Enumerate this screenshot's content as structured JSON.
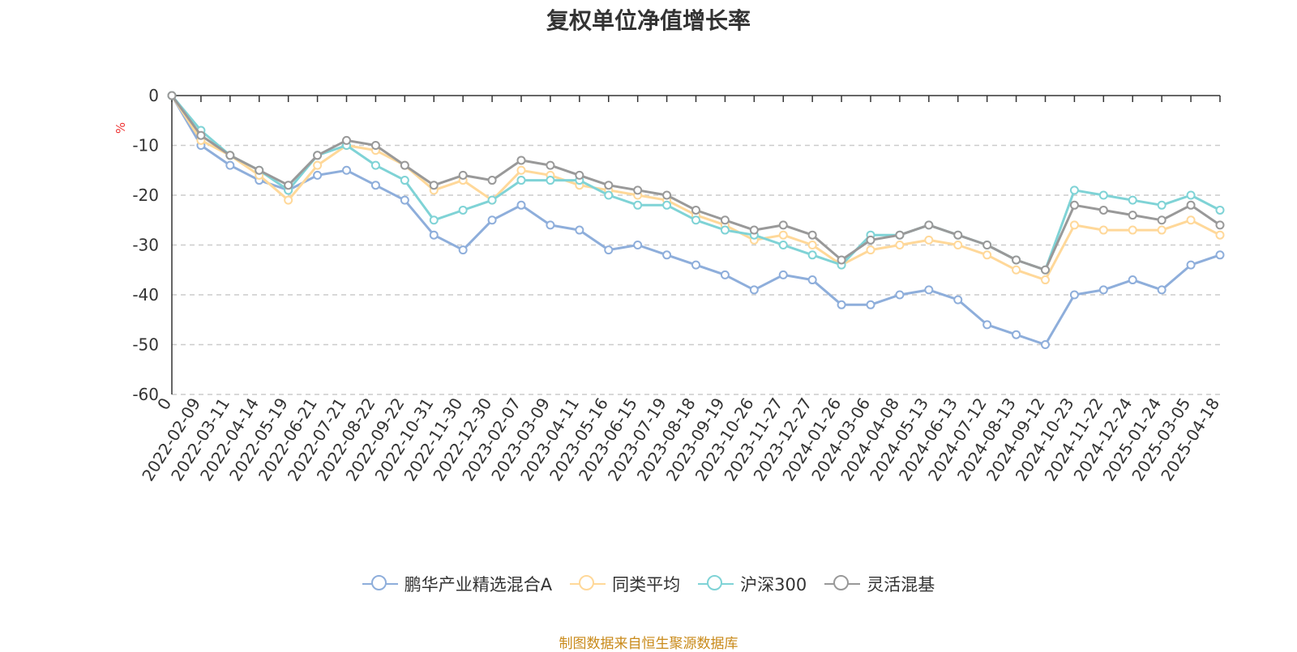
{
  "chart_data": {
    "type": "line",
    "title": "复权单位净值增长率",
    "ylabel": "%",
    "ylim": [
      -60,
      0
    ],
    "yticks": [
      "0",
      "-10",
      "-20",
      "-30",
      "-40",
      "-50",
      "-60"
    ],
    "ytick_values": [
      0,
      -10,
      -20,
      -30,
      -40,
      -50,
      -60
    ],
    "grid": true,
    "legend_position": "bottom",
    "x_tick_labels": [
      "0",
      "2022-02-09",
      "2022-03-11",
      "2022-04-14",
      "2022-05-19",
      "2022-06-21",
      "2022-07-21",
      "2022-08-22",
      "2022-09-22",
      "2022-10-31",
      "2022-11-30",
      "2022-12-30",
      "2023-02-07",
      "2023-03-09",
      "2023-04-11",
      "2023-05-16",
      "2023-06-15",
      "2023-07-19",
      "2023-08-18",
      "2023-09-19",
      "2023-10-26",
      "2023-11-27",
      "2023-12-27",
      "2024-01-26",
      "2024-03-06",
      "2024-04-08",
      "2024-05-13",
      "2024-06-13",
      "2024-07-12",
      "2024-08-13",
      "2024-09-12",
      "2024-10-23",
      "2024-11-22",
      "2024-12-24",
      "2025-01-24",
      "2025-03-05",
      "2025-04-18"
    ],
    "x_index": [
      0,
      1,
      2,
      3,
      4,
      5,
      6,
      7,
      8,
      9,
      10,
      11,
      12,
      13,
      14,
      15,
      16,
      17,
      18,
      19,
      20,
      21,
      22,
      23,
      24,
      25,
      26,
      27,
      28,
      29,
      30,
      31,
      32,
      33,
      34,
      35,
      36
    ],
    "series": [
      {
        "name": "鹏华产业精选混合A",
        "color": "#8eaedb",
        "values": [
          0,
          -10,
          -14,
          -17,
          -19,
          -16,
          -15,
          -18,
          -21,
          -28,
          -31,
          -25,
          -22,
          -26,
          -27,
          -31,
          -30,
          -32,
          -34,
          -36,
          -39,
          -36,
          -37,
          -42,
          -42,
          -40,
          -39,
          -41,
          -46,
          -48,
          -50,
          -40,
          -39,
          -37,
          -39,
          -34,
          -32
        ]
      },
      {
        "name": "同类平均",
        "color": "#ffd899",
        "values": [
          0,
          -9,
          -12,
          -16,
          -21,
          -14,
          -10,
          -11,
          -14,
          -19,
          -17,
          -21,
          -15,
          -16,
          -18,
          -19,
          -20,
          -21,
          -24,
          -26,
          -29,
          -28,
          -30,
          -34,
          -31,
          -30,
          -29,
          -30,
          -32,
          -35,
          -37,
          -26,
          -27,
          -27,
          -27,
          -25,
          -28
        ]
      },
      {
        "name": "沪深300",
        "color": "#7fd3d6",
        "values": [
          0,
          -7,
          -12,
          -15,
          -19,
          -12,
          -10,
          -14,
          -17,
          -25,
          -23,
          -21,
          -17,
          -17,
          -17,
          -20,
          -22,
          -22,
          -25,
          -27,
          -28,
          -30,
          -32,
          -34,
          -28,
          -28,
          -26,
          -28,
          -30,
          -33,
          -35,
          -19,
          -20,
          -21,
          -22,
          -20,
          -23
        ]
      },
      {
        "name": "灵活混基",
        "color": "#999999",
        "values": [
          0,
          -8,
          -12,
          -15,
          -18,
          -12,
          -9,
          -10,
          -14,
          -18,
          -16,
          -17,
          -13,
          -14,
          -16,
          -18,
          -19,
          -20,
          -23,
          -25,
          -27,
          -26,
          -28,
          -33,
          -29,
          -28,
          -26,
          -28,
          -30,
          -33,
          -35,
          -22,
          -23,
          -24,
          -25,
          -22,
          -26
        ]
      }
    ]
  },
  "source_note": "制图数据来自恒生聚源数据库"
}
